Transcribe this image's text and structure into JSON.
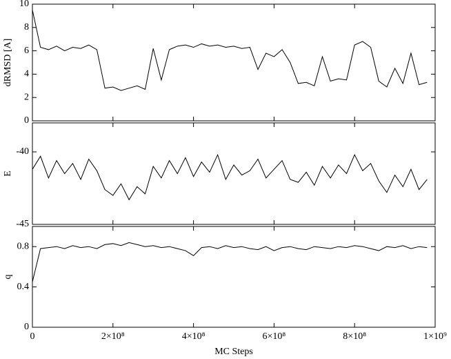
{
  "chart_data": [
    {
      "type": "line",
      "ylabel": "dRMSD [A]",
      "xlim": [
        0,
        1000000000.0
      ],
      "ylim": [
        0,
        10
      ],
      "yticks": [
        0,
        2,
        4,
        6,
        8,
        10
      ],
      "x": [
        0,
        20000000.0,
        40000000.0,
        60000000.0,
        80000000.0,
        100000000.0,
        120000000.0,
        140000000.0,
        160000000.0,
        180000000.0,
        200000000.0,
        220000000.0,
        240000000.0,
        260000000.0,
        280000000.0,
        300000000.0,
        320000000.0,
        340000000.0,
        360000000.0,
        380000000.0,
        400000000.0,
        420000000.0,
        440000000.0,
        460000000.0,
        480000000.0,
        500000000.0,
        520000000.0,
        540000000.0,
        560000000.0,
        580000000.0,
        600000000.0,
        620000000.0,
        640000000.0,
        660000000.0,
        680000000.0,
        700000000.0,
        720000000.0,
        740000000.0,
        760000000.0,
        780000000.0,
        800000000.0,
        820000000.0,
        840000000.0,
        860000000.0,
        880000000.0,
        900000000.0,
        920000000.0,
        940000000.0,
        960000000.0,
        980000000.0
      ],
      "series": [
        {
          "color": "#000000",
          "values": [
            9.5,
            6.3,
            6.1,
            6.4,
            6.0,
            6.3,
            6.2,
            6.5,
            6.1,
            2.8,
            2.9,
            2.6,
            2.8,
            3.0,
            2.7,
            6.2,
            3.5,
            6.1,
            6.4,
            6.5,
            6.3,
            6.6,
            6.4,
            6.5,
            6.3,
            6.4,
            6.2,
            6.3,
            4.4,
            5.8,
            5.5,
            6.1,
            5.0,
            3.2,
            3.3,
            3.0,
            5.5,
            3.4,
            3.6,
            3.5,
            6.5,
            6.8,
            6.3,
            3.4,
            2.9,
            4.5,
            3.2,
            5.8,
            3.1,
            3.3
          ]
        }
      ]
    },
    {
      "type": "line",
      "ylabel": "E",
      "xlim": [
        0,
        1000000000.0
      ],
      "ylim": [
        -45,
        -38
      ],
      "yticks": [
        -45,
        -40
      ],
      "x": [
        0,
        20000000.0,
        40000000.0,
        60000000.0,
        80000000.0,
        100000000.0,
        120000000.0,
        140000000.0,
        160000000.0,
        180000000.0,
        200000000.0,
        220000000.0,
        240000000.0,
        260000000.0,
        280000000.0,
        300000000.0,
        320000000.0,
        340000000.0,
        360000000.0,
        380000000.0,
        400000000.0,
        420000000.0,
        440000000.0,
        460000000.0,
        480000000.0,
        500000000.0,
        520000000.0,
        540000000.0,
        560000000.0,
        580000000.0,
        600000000.0,
        620000000.0,
        640000000.0,
        660000000.0,
        680000000.0,
        700000000.0,
        720000000.0,
        740000000.0,
        760000000.0,
        780000000.0,
        800000000.0,
        820000000.0,
        840000000.0,
        860000000.0,
        880000000.0,
        900000000.0,
        920000000.0,
        940000000.0,
        960000000.0,
        980000000.0
      ],
      "series": [
        {
          "color": "#000000",
          "values": [
            -41.2,
            -40.3,
            -41.8,
            -40.6,
            -41.5,
            -40.8,
            -41.9,
            -40.5,
            -41.3,
            -42.6,
            -43.0,
            -42.2,
            -43.3,
            -42.4,
            -42.9,
            -41.0,
            -41.8,
            -40.6,
            -41.5,
            -40.4,
            -41.7,
            -40.7,
            -41.4,
            -40.2,
            -41.9,
            -40.9,
            -41.6,
            -41.3,
            -40.5,
            -41.8,
            -41.2,
            -40.6,
            -41.9,
            -42.1,
            -41.4,
            -42.3,
            -41.0,
            -41.8,
            -40.9,
            -41.5,
            -40.2,
            -41.3,
            -40.8,
            -42.0,
            -42.8,
            -41.6,
            -42.4,
            -41.2,
            -42.6,
            -41.9
          ]
        }
      ]
    },
    {
      "type": "line",
      "ylabel": "q",
      "xlabel": "MC Steps",
      "xlim": [
        0,
        1000000000.0
      ],
      "ylim": [
        0,
        1
      ],
      "yticks": [
        0,
        0.4,
        0.8
      ],
      "xticks": [
        0,
        {
          "value": 200000000.0,
          "label": "2×10⁸"
        },
        {
          "value": 400000000.0,
          "label": "4×10⁸"
        },
        {
          "value": 600000000.0,
          "label": "6×10⁸"
        },
        {
          "value": 800000000.0,
          "label": "8×10⁸"
        },
        {
          "value": 1000000000.0,
          "label": "1×10⁹"
        }
      ],
      "x": [
        0,
        20000000.0,
        40000000.0,
        60000000.0,
        80000000.0,
        100000000.0,
        120000000.0,
        140000000.0,
        160000000.0,
        180000000.0,
        200000000.0,
        220000000.0,
        240000000.0,
        260000000.0,
        280000000.0,
        300000000.0,
        320000000.0,
        340000000.0,
        360000000.0,
        380000000.0,
        400000000.0,
        420000000.0,
        440000000.0,
        460000000.0,
        480000000.0,
        500000000.0,
        520000000.0,
        540000000.0,
        560000000.0,
        580000000.0,
        600000000.0,
        620000000.0,
        640000000.0,
        660000000.0,
        680000000.0,
        700000000.0,
        720000000.0,
        740000000.0,
        760000000.0,
        780000000.0,
        800000000.0,
        820000000.0,
        840000000.0,
        860000000.0,
        880000000.0,
        900000000.0,
        920000000.0,
        940000000.0,
        960000000.0,
        980000000.0
      ],
      "series": [
        {
          "color": "#000000",
          "values": [
            0.45,
            0.78,
            0.79,
            0.8,
            0.78,
            0.81,
            0.79,
            0.8,
            0.78,
            0.82,
            0.83,
            0.81,
            0.84,
            0.82,
            0.8,
            0.81,
            0.79,
            0.8,
            0.78,
            0.76,
            0.71,
            0.79,
            0.8,
            0.78,
            0.81,
            0.79,
            0.8,
            0.78,
            0.77,
            0.8,
            0.76,
            0.79,
            0.8,
            0.78,
            0.77,
            0.8,
            0.79,
            0.78,
            0.8,
            0.79,
            0.81,
            0.8,
            0.78,
            0.76,
            0.8,
            0.79,
            0.81,
            0.78,
            0.8,
            0.79
          ]
        }
      ]
    }
  ]
}
